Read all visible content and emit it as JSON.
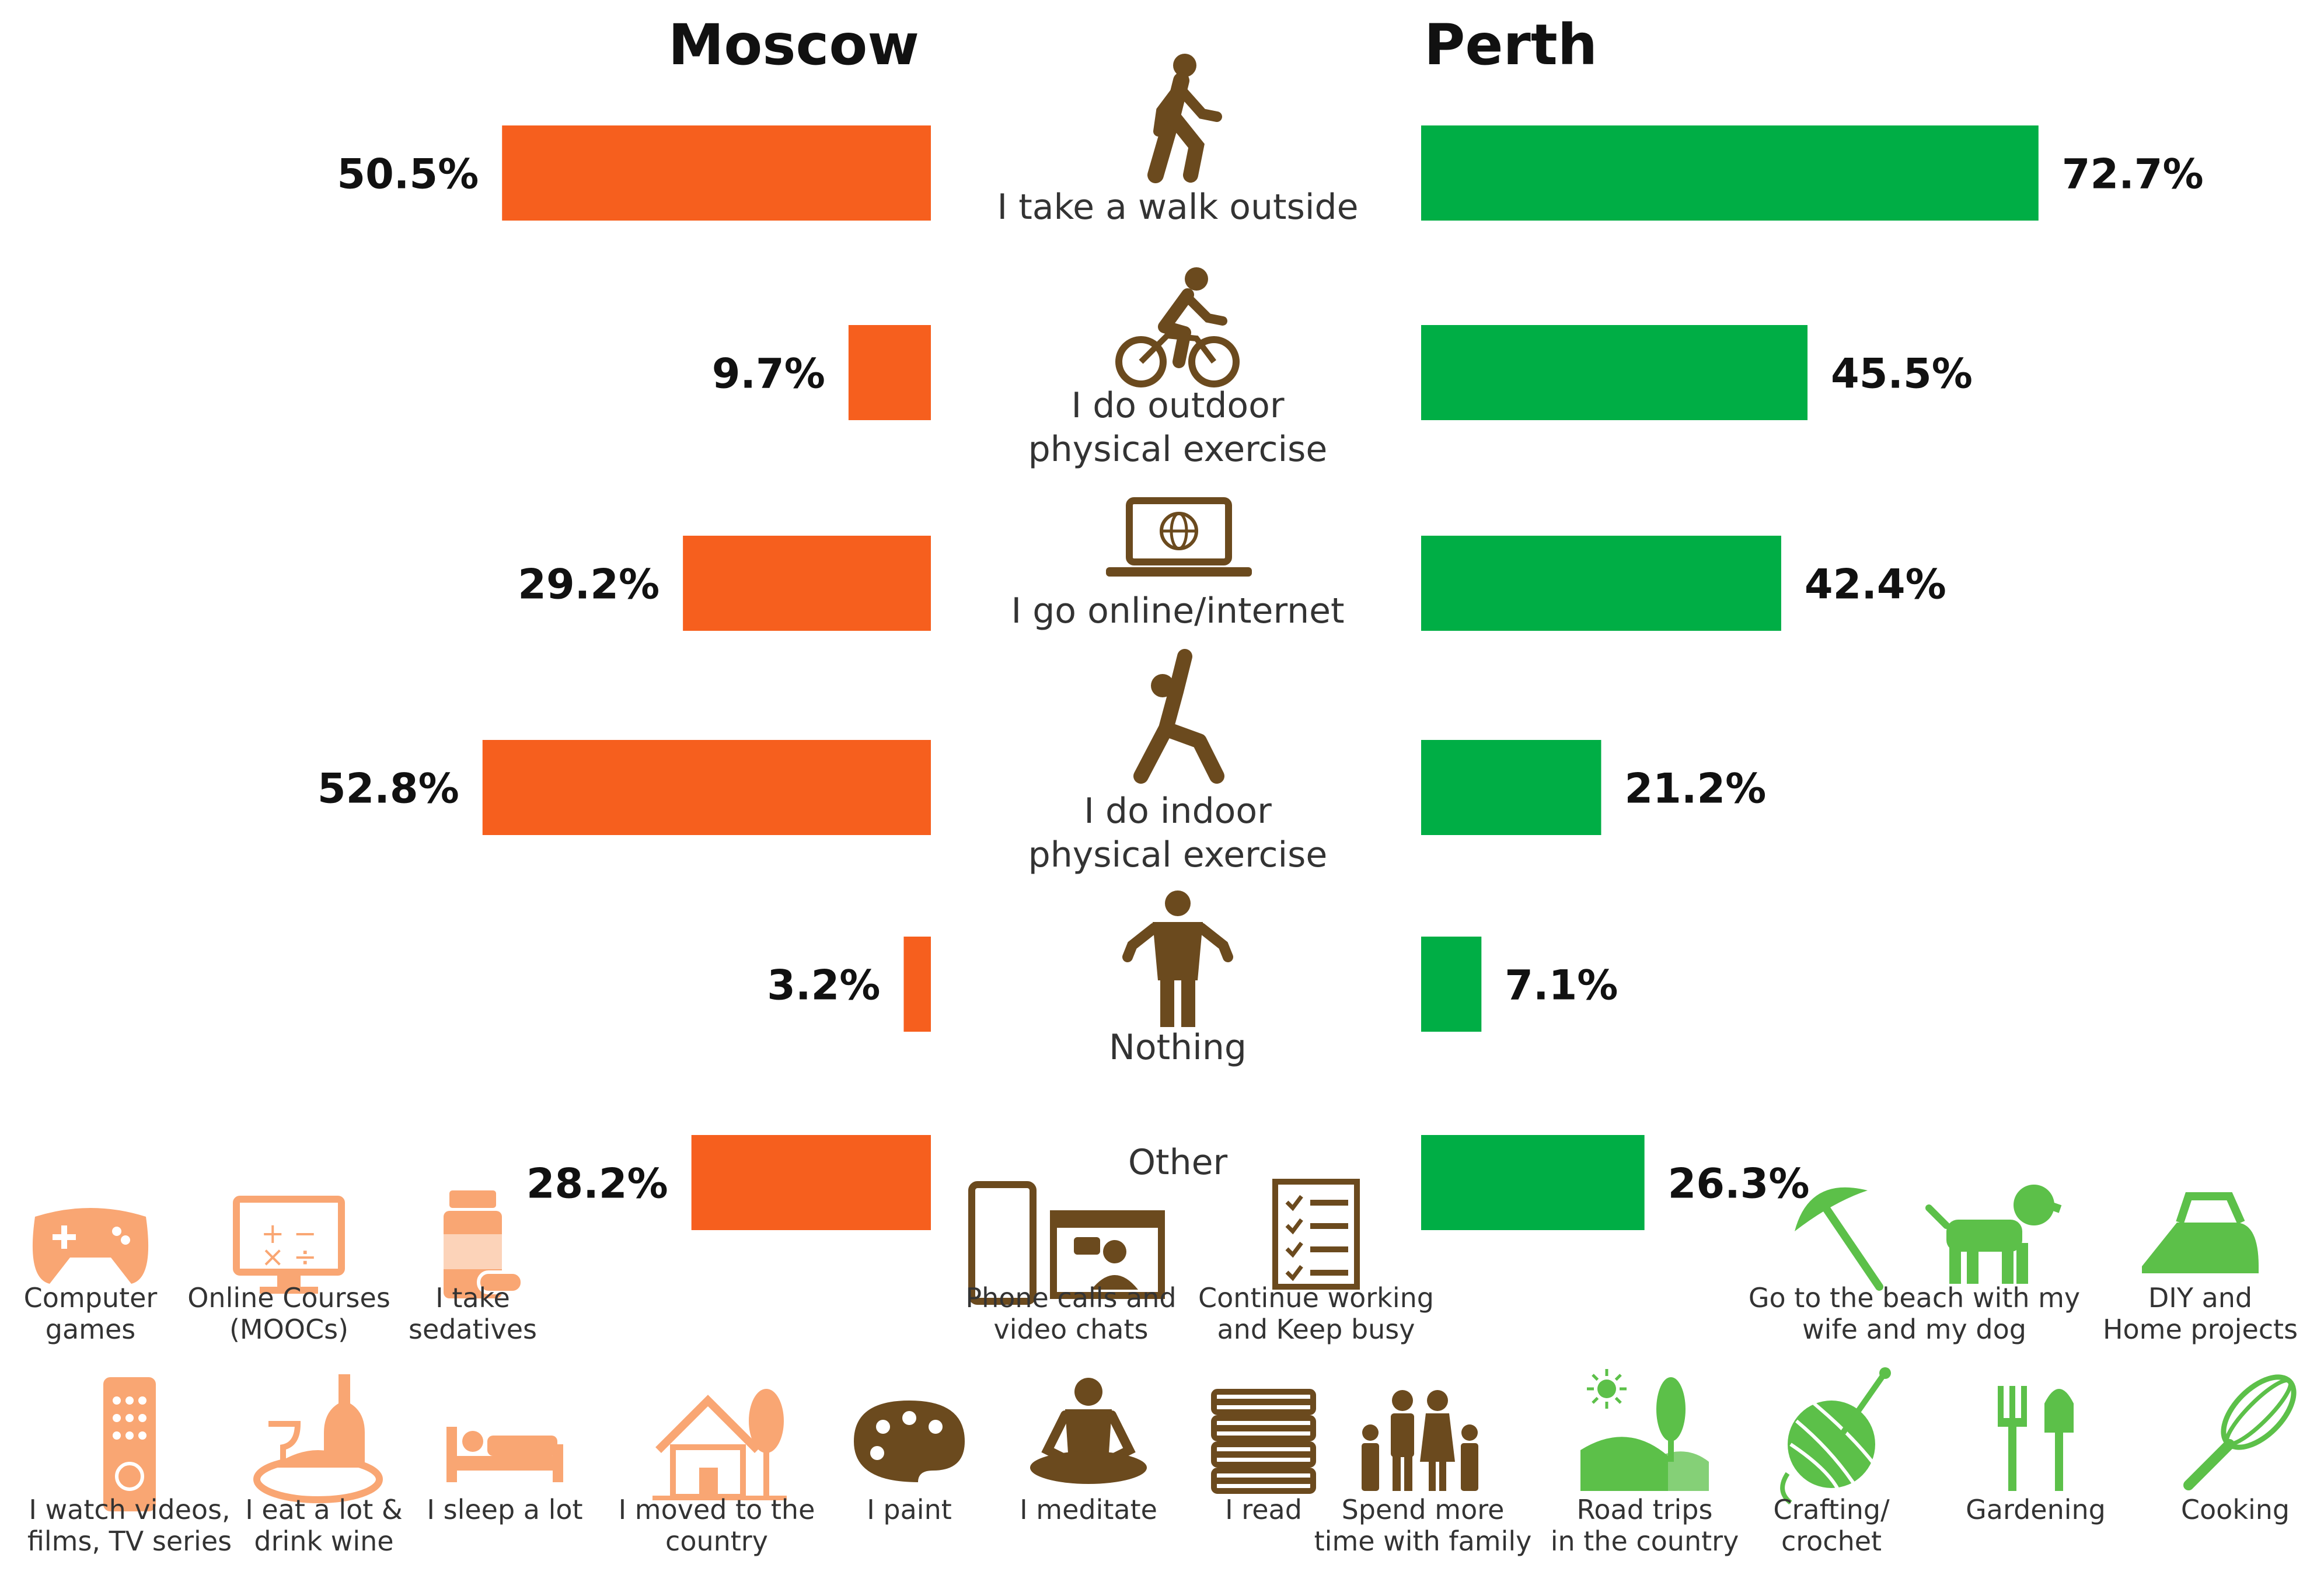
{
  "headers": {
    "left": "Moscow",
    "right": "Perth"
  },
  "colors": {
    "moscow": "#F65F1E",
    "perth": "#00AE45",
    "icon_brown": "#6B4A1E",
    "icon_moscow": "#F9A673",
    "icon_perth": "#5CC049",
    "text": "#333333"
  },
  "chart_data": {
    "type": "bar",
    "orientation": "horizontal-butterfly",
    "categories": [
      "I take a walk outside",
      "I do outdoor physical exercise",
      "I go online/internet",
      "I do indoor physical exercise",
      "Nothing",
      "Other"
    ],
    "series": [
      {
        "name": "Moscow",
        "values": [
          50.5,
          9.7,
          29.2,
          52.8,
          3.2,
          28.2
        ],
        "labels": [
          "50.5%",
          "9.7%",
          "29.2%",
          "52.8%",
          "3.2%",
          "28.2%"
        ]
      },
      {
        "name": "Perth",
        "values": [
          72.7,
          45.5,
          42.4,
          21.2,
          7.1,
          26.3
        ],
        "labels": [
          "72.7%",
          "45.5%",
          "42.4%",
          "21.2%",
          "7.1%",
          "26.3%"
        ]
      }
    ],
    "category_icons": [
      "walking-person-icon",
      "cyclist-icon",
      "laptop-globe-icon",
      "stretching-person-icon",
      "standing-person-icon",
      ""
    ],
    "category_lines": [
      [
        "I take a walk outside"
      ],
      [
        "I do outdoor",
        "physical exercise"
      ],
      [
        "I go online/internet"
      ],
      [
        "I do indoor",
        "physical exercise"
      ],
      [
        "Nothing"
      ],
      [
        "Other"
      ]
    ],
    "grid": false,
    "legend": "none"
  },
  "other_items": {
    "moscow_row1": [
      {
        "icon": "gamepad-icon",
        "lines": [
          "Computer",
          "games"
        ]
      },
      {
        "icon": "monitor-math-icon",
        "lines": [
          "Online Courses",
          "(MOOCs)"
        ]
      },
      {
        "icon": "pill-bottle-icon",
        "lines": [
          "I take",
          "sedatives"
        ]
      }
    ],
    "shared_row1": [
      {
        "icon": "phone-video-icon",
        "lines": [
          "Phone calls and",
          "video chats"
        ]
      },
      {
        "icon": "checklist-icon",
        "lines": [
          "Continue working",
          "and Keep busy"
        ]
      }
    ],
    "perth_row1": [
      {
        "icon": "beach-umbrella-icon",
        "lines": [
          "Go to the beach with my",
          "wife and my dog"
        ]
      },
      {
        "icon": "dog-icon",
        "lines": []
      },
      {
        "icon": "iron-icon",
        "lines": [
          "DIY and",
          "Home projects"
        ]
      }
    ],
    "moscow_row2": [
      {
        "icon": "remote-control-icon",
        "lines": [
          "I watch videos,",
          "films, TV series"
        ]
      },
      {
        "icon": "food-wine-icon",
        "lines": [
          "I eat a lot &",
          "drink wine"
        ]
      },
      {
        "icon": "bed-icon",
        "lines": [
          "I sleep a lot"
        ]
      },
      {
        "icon": "country-house-icon",
        "lines": [
          "I moved to the",
          "country"
        ]
      }
    ],
    "shared_row2": [
      {
        "icon": "palette-icon",
        "lines": [
          "I paint"
        ]
      },
      {
        "icon": "meditation-icon",
        "lines": [
          "I meditate"
        ]
      },
      {
        "icon": "books-icon",
        "lines": [
          "I read"
        ]
      },
      {
        "icon": "family-icon",
        "lines": [
          "Spend more",
          "time with family"
        ]
      }
    ],
    "perth_row2": [
      {
        "icon": "landscape-icon",
        "lines": [
          "Road trips",
          "in the country"
        ]
      },
      {
        "icon": "yarn-ball-icon",
        "lines": [
          "Crafting/",
          "crochet"
        ]
      },
      {
        "icon": "garden-tools-icon",
        "lines": [
          "Gardening"
        ]
      },
      {
        "icon": "whisk-icon",
        "lines": [
          "Cooking"
        ]
      }
    ]
  }
}
